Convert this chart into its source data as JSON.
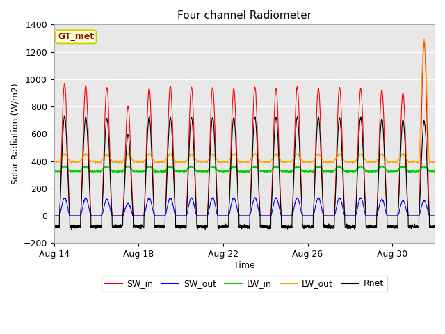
{
  "title": "Four channel Radiometer",
  "xlabel": "Time",
  "ylabel": "Solar Radiation (W/m2)",
  "ylim": [
    -200,
    1400
  ],
  "annotation": "GT_met",
  "legend": [
    "SW_in",
    "SW_out",
    "LW_in",
    "LW_out",
    "Rnet"
  ],
  "colors": {
    "SW_in": "#ff0000",
    "SW_out": "#0000ff",
    "LW_in": "#00cc00",
    "LW_out": "#ffa500",
    "Rnet": "#000000"
  },
  "xtick_labels": [
    "Aug 14",
    "Aug 18",
    "Aug 22",
    "Aug 26",
    "Aug 30"
  ],
  "xtick_positions": [
    0,
    4,
    8,
    12,
    16
  ],
  "background_color": "#e8e8e8",
  "num_days": 18,
  "spike_day": 17,
  "spike_value": 1270
}
